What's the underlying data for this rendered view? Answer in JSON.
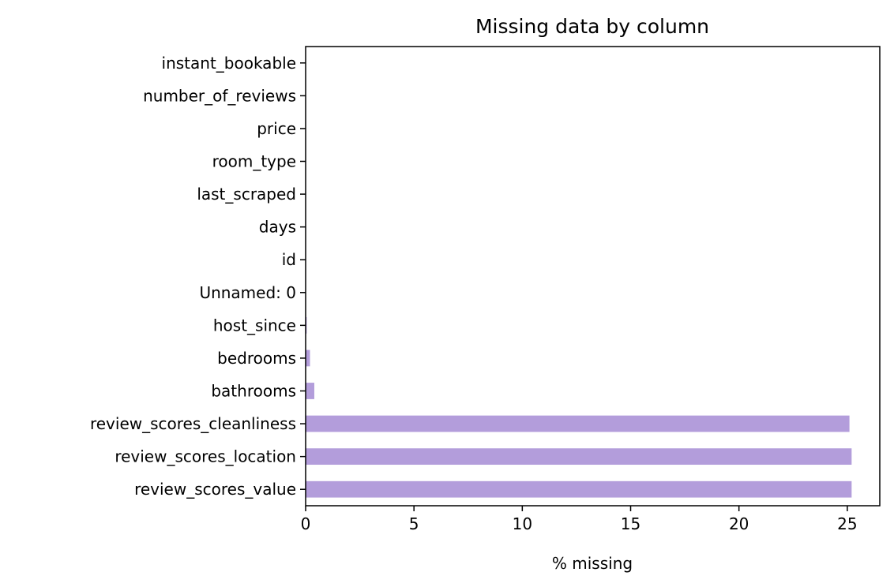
{
  "chart_data": {
    "type": "bar",
    "orientation": "horizontal",
    "title": "Missing data by column",
    "xlabel": "% missing",
    "ylabel": "",
    "xlim": [
      0,
      26.5
    ],
    "xticks": [
      0,
      5,
      10,
      15,
      20,
      25
    ],
    "grid": false,
    "legend": "none",
    "bar_color": "#b39ddb",
    "categories": [
      "review_scores_value",
      "review_scores_location",
      "review_scores_cleanliness",
      "bathrooms",
      "bedrooms",
      "host_since",
      "Unnamed: 0",
      "id",
      "days",
      "last_scraped",
      "room_type",
      "price",
      "number_of_reviews",
      "instant_bookable"
    ],
    "values": [
      25.2,
      25.2,
      25.1,
      0.4,
      0.2,
      0.05,
      0,
      0,
      0,
      0,
      0,
      0,
      0,
      0
    ]
  }
}
